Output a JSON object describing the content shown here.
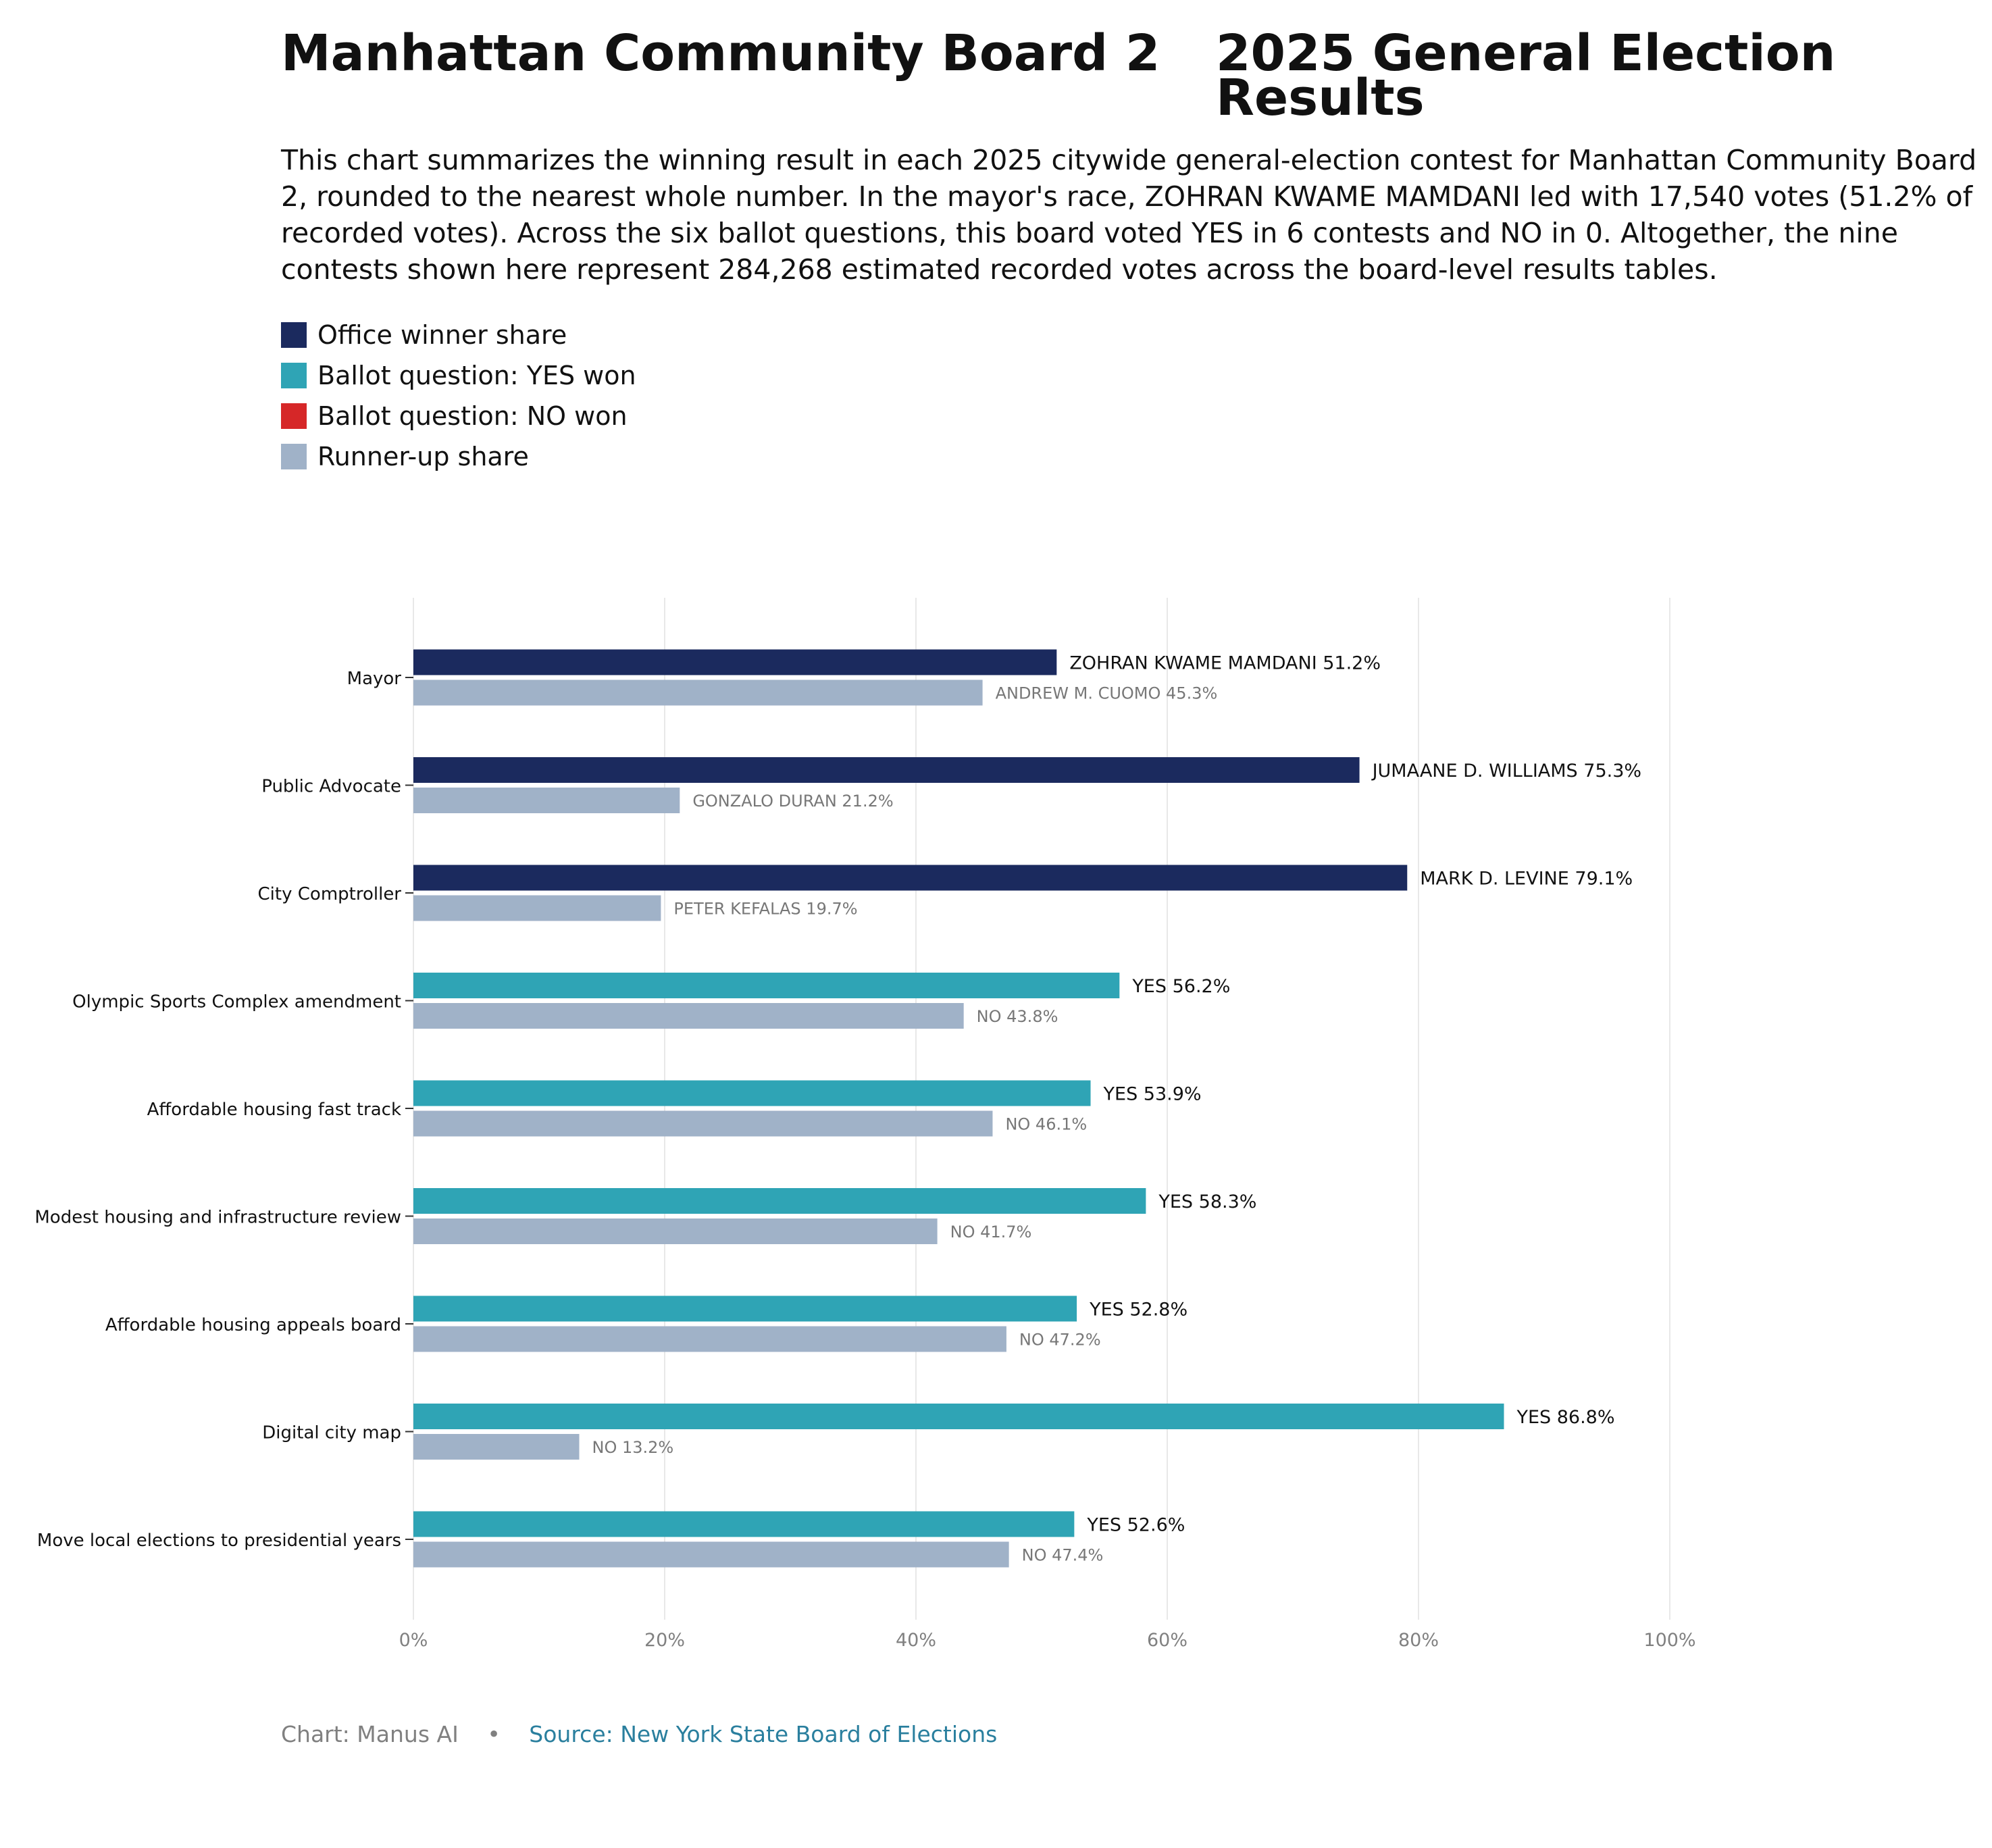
{
  "title_left": "Manhattan Community Board 2",
  "title_right": "2025 General Election Results",
  "subtitle": "This chart summarizes the winning result in each 2025 citywide general-election contest for Manhattan Community Board 2, rounded to the nearest whole number. In the mayor's race, ZOHRAN KWAME MAMDANI led with 17,540 votes (51.2% of recorded votes). Across the six ballot questions, this board voted YES in 6 contests and NO in 0. Altogether, the nine contests shown here represent 284,268 estimated recorded votes across the board-level results tables.",
  "legend": [
    {
      "label": "Office winner share",
      "color": "#1b2a5e"
    },
    {
      "label": "Ballot question: YES won",
      "color": "#2fa4b5"
    },
    {
      "label": "Ballot question: NO won",
      "color": "#d62728"
    },
    {
      "label": "Runner-up share",
      "color": "#a0b2c8"
    }
  ],
  "footer": {
    "credit": "Chart: Manus AI",
    "separator": "•",
    "source": "Source: New York State Board of Elections"
  },
  "chart_data": {
    "type": "bar",
    "orientation": "horizontal",
    "xlim": [
      0,
      100
    ],
    "x_ticks": [
      "0%",
      "20%",
      "40%",
      "60%",
      "80%",
      "100%"
    ],
    "grid": "vertical",
    "categories": [
      "Mayor",
      "Public Advocate",
      "City Comptroller",
      "Olympic Sports Complex amendment",
      "Affordable housing fast track",
      "Modest housing and infrastructure review",
      "Affordable housing appeals board",
      "Digital city map",
      "Move local elections to presidential years"
    ],
    "contests": [
      {
        "winner_label": "ZOHRAN KWAME MAMDANI 51.2%",
        "winner": 51.2,
        "winner_kind": "office",
        "runner_label": "ANDREW M. CUOMO 45.3%",
        "runner": 45.3
      },
      {
        "winner_label": "JUMAANE D. WILLIAMS 75.3%",
        "winner": 75.3,
        "winner_kind": "office",
        "runner_label": "GONZALO DURAN 21.2%",
        "runner": 21.2
      },
      {
        "winner_label": "MARK D. LEVINE 79.1%",
        "winner": 79.1,
        "winner_kind": "office",
        "runner_label": "PETER KEFALAS 19.7%",
        "runner": 19.7
      },
      {
        "winner_label": "YES 56.2%",
        "winner": 56.2,
        "winner_kind": "yes",
        "runner_label": "NO 43.8%",
        "runner": 43.8
      },
      {
        "winner_label": "YES 53.9%",
        "winner": 53.9,
        "winner_kind": "yes",
        "runner_label": "NO 46.1%",
        "runner": 46.1
      },
      {
        "winner_label": "YES 58.3%",
        "winner": 58.3,
        "winner_kind": "yes",
        "runner_label": "NO 41.7%",
        "runner": 41.7
      },
      {
        "winner_label": "YES 52.8%",
        "winner": 52.8,
        "winner_kind": "yes",
        "runner_label": "NO 47.2%",
        "runner": 47.2
      },
      {
        "winner_label": "YES 86.8%",
        "winner": 86.8,
        "winner_kind": "yes",
        "runner_label": "NO 13.2%",
        "runner": 13.2
      },
      {
        "winner_label": "YES 52.6%",
        "winner": 52.6,
        "winner_kind": "yes",
        "runner_label": "NO 47.4%",
        "runner": 47.4
      }
    ],
    "colors": {
      "office": "#1b2a5e",
      "yes": "#2fa4b5",
      "no": "#d62728",
      "runner": "#a0b2c8",
      "grid": "#e8e8e8",
      "tick_text": "#808080",
      "winner_text": "#111111",
      "runner_text": "#777777"
    }
  }
}
